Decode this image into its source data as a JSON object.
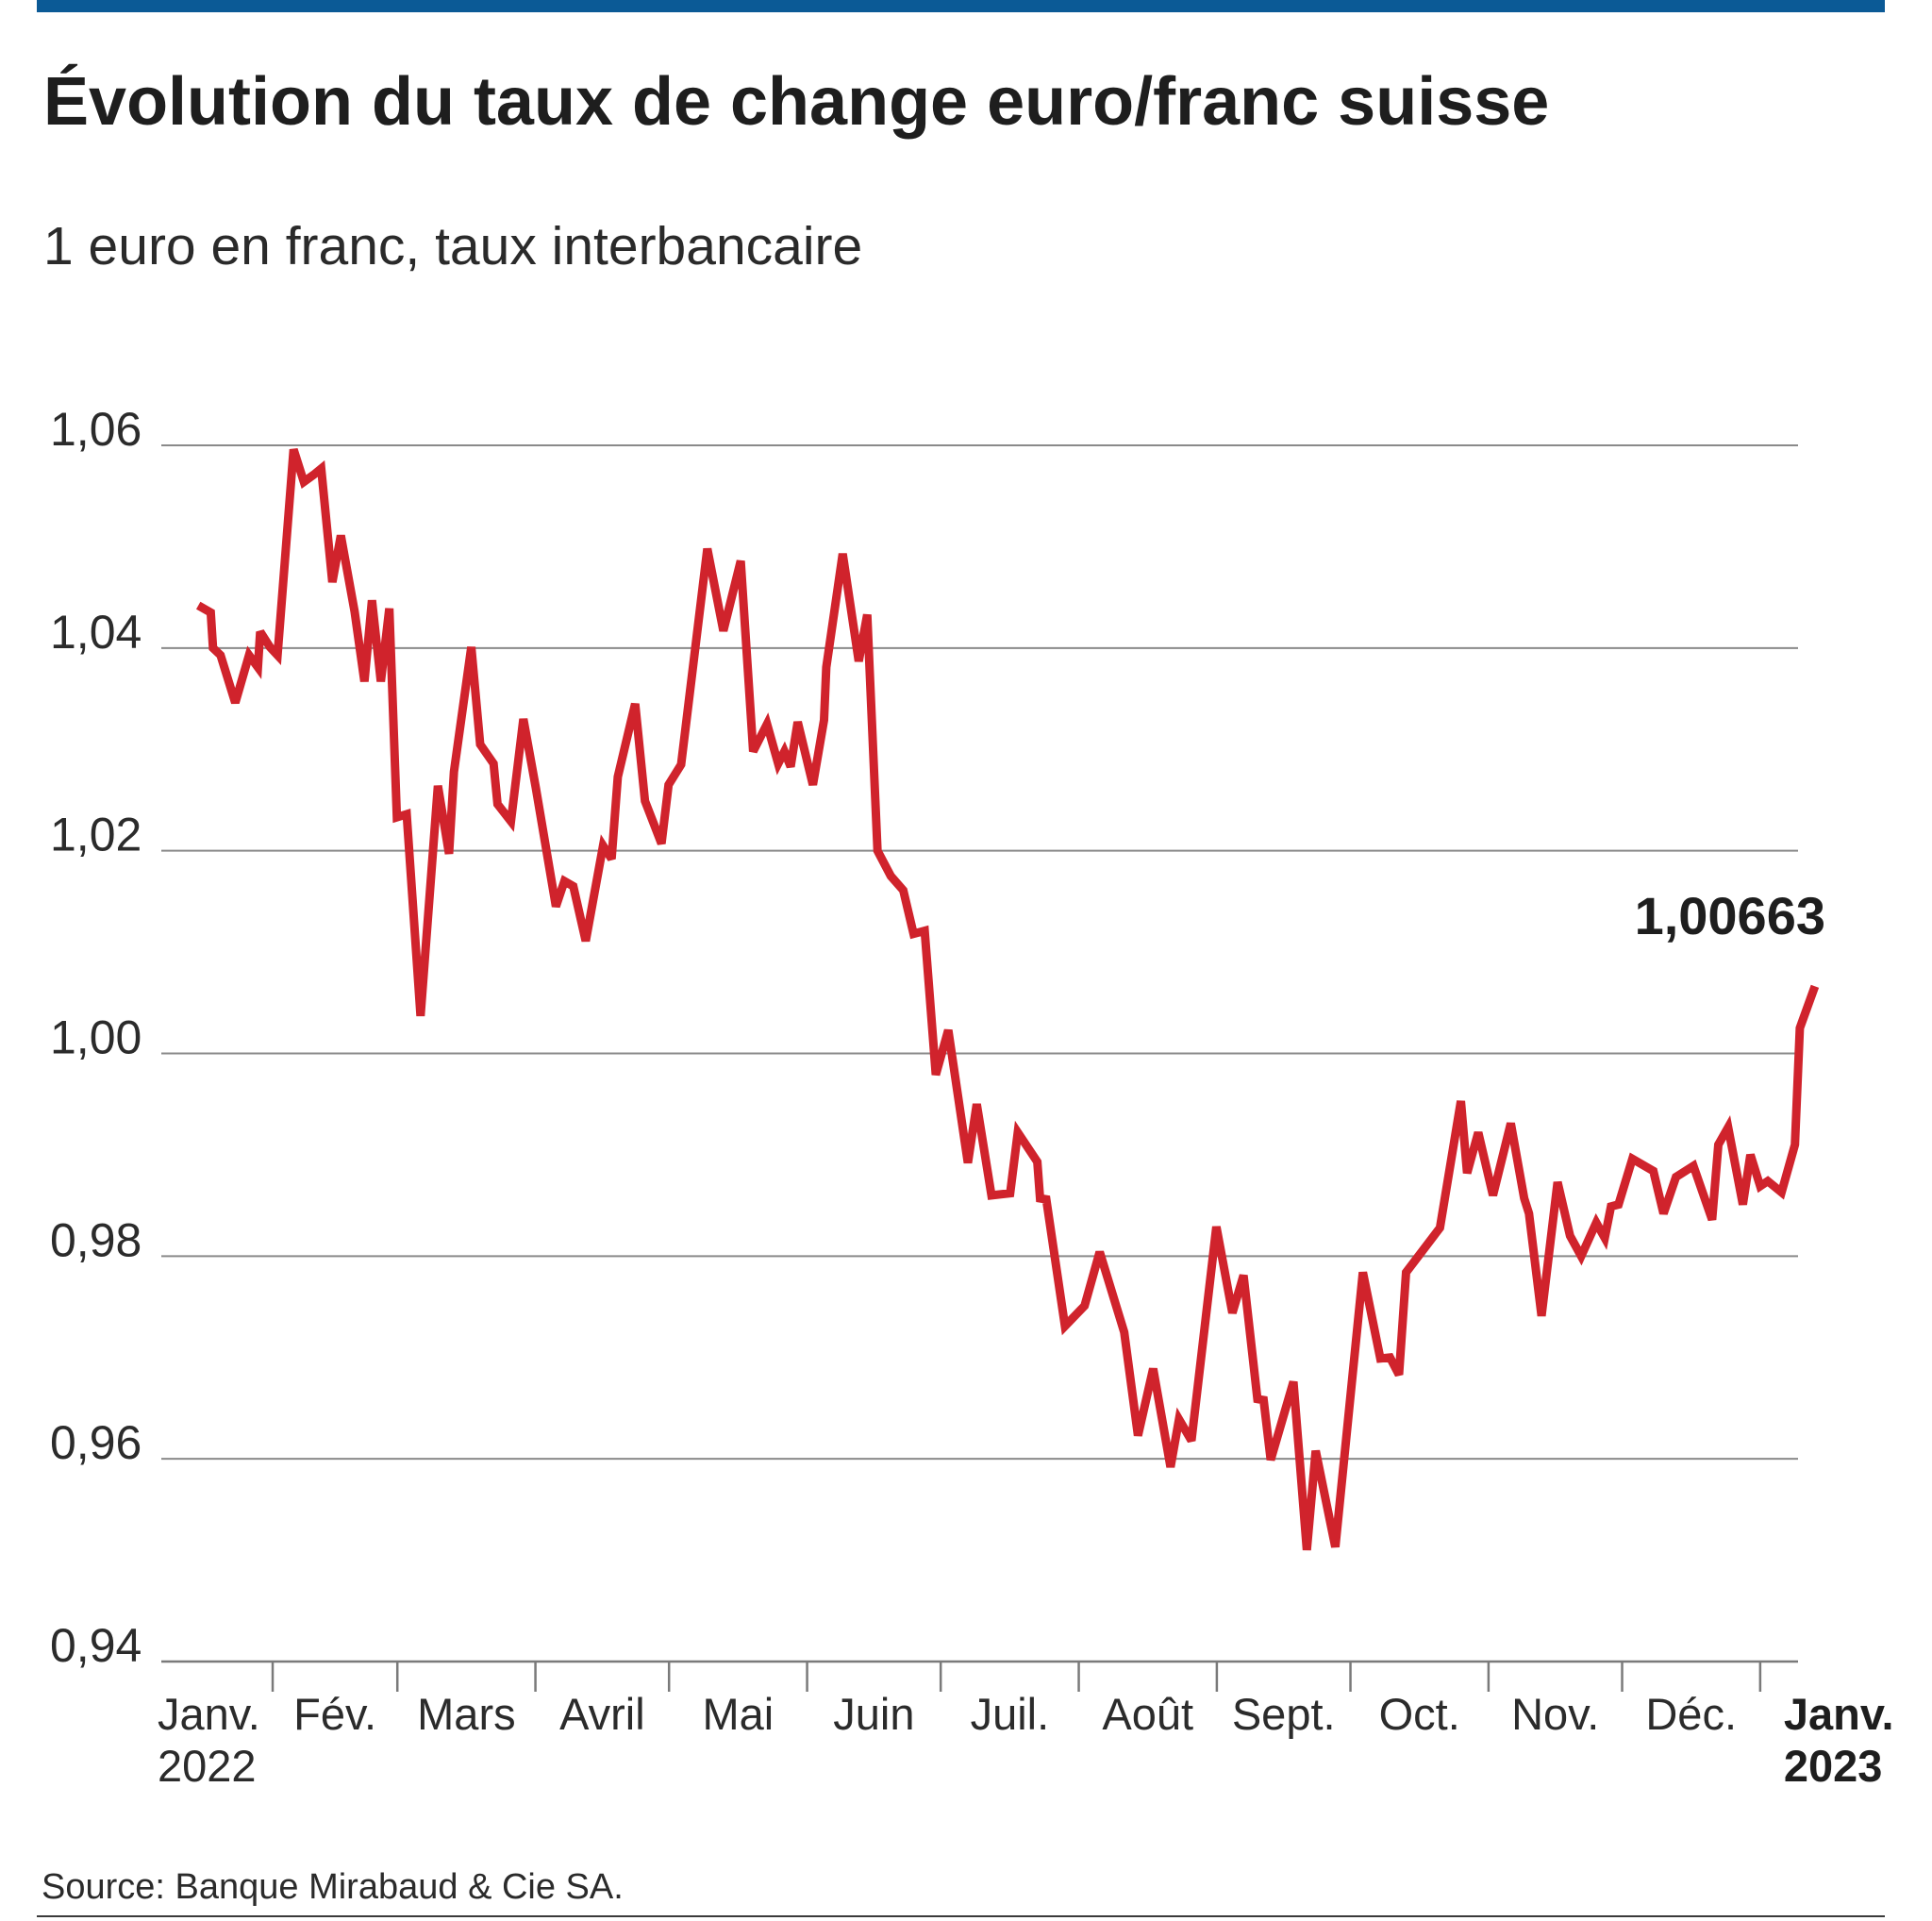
{
  "colors": {
    "top_bar": "#0b5a96",
    "line": "#d0232c",
    "grid": "#8a8a8a",
    "axis": "#7a7a7a",
    "rule": "#3a3a3a"
  },
  "source": "Source: Banque Mirabaud & Cie SA.",
  "chart_data": {
    "type": "line",
    "title": "Évolution du taux de change euro/franc suisse",
    "subtitle": "1 euro en franc, taux interbancaire",
    "grid": true,
    "xlim": [
      6,
      373.5
    ],
    "ylim": [
      0.94,
      1.06
    ],
    "yticks": [
      0.94,
      0.96,
      0.98,
      1.0,
      1.02,
      1.04,
      1.06
    ],
    "ytick_labels": [
      "0,94",
      "0,96",
      "0,98",
      "1,00",
      "1,02",
      "1,04",
      "1,06"
    ],
    "month_ticks": [
      31,
      59,
      90,
      120,
      151,
      181,
      212,
      243,
      273,
      304,
      334,
      365
    ],
    "month_labels": [
      "Janv.",
      "Fév.",
      "Mars",
      "Avril",
      "Mai",
      "Juin",
      "Juil.",
      "Août",
      "Sept.",
      "Oct.",
      "Nov.",
      "Déc.",
      "Janv."
    ],
    "year_labels": [
      "2022",
      "2023"
    ],
    "annotation": "1,00663",
    "series": [
      {
        "x": [
          14.3,
          17.1,
          17.6,
          19.3,
          22.6,
          25.7,
          27.7,
          28.2,
          30.4,
          32.1,
          35.7,
          38.0,
          40.2,
          41.9,
          44.4,
          46.3,
          49.4,
          51.6,
          53.3,
          55.3,
          57.2,
          58.9,
          61.1,
          64.2,
          68.1,
          70.6,
          71.7,
          75.6,
          77.6,
          80.6,
          81.5,
          84.5,
          87.3,
          90.1,
          94.6,
          96.5,
          98.5,
          101.3,
          105.2,
          107.1,
          108.5,
          112.4,
          114.6,
          118.3,
          119.9,
          122.7,
          128.6,
          132.2,
          136.1,
          138.9,
          142.0,
          144.5,
          145.9,
          147.3,
          148.9,
          152.3,
          154.8,
          155.3,
          159.0,
          162.6,
          164.5,
          166.8,
          169.8,
          172.6,
          174.9,
          177.4,
          179.9,
          182.7,
          187.1,
          189.1,
          192.4,
          196.6,
          198.3,
          202.7,
          203.3,
          204.7,
          208.9,
          213.3,
          216.7,
          222.2,
          225.3,
          228.7,
          232.6,
          234.5,
          237.3,
          242.9,
          246.5,
          249.0,
          252.1,
          253.5,
          255.1,
          260.2,
          263.2,
          265.2,
          269.6,
          275.8,
          279.7,
          281.9,
          283.9,
          285.5,
          293.1,
          297.8,
          299.2,
          301.7,
          305.0,
          309.0,
          312.0,
          313.1,
          315.9,
          319.5,
          322.3,
          324.8,
          328.2,
          330.1,
          331.5,
          333.2,
          336.3,
          341.0,
          343.3,
          346.1,
          350.0,
          354.2,
          355.6,
          357.8,
          361.1,
          362.8,
          365.0,
          366.7,
          369.8,
          372.8,
          373.9,
          377.3
        ],
        "y": [
          1.0442,
          1.0435,
          1.04,
          1.0393,
          1.0346,
          1.0393,
          1.0381,
          1.0416,
          1.0401,
          1.0393,
          1.0596,
          1.0564,
          1.0571,
          1.0577,
          1.0465,
          1.0511,
          1.0436,
          1.0367,
          1.0447,
          1.0367,
          1.0439,
          1.0233,
          1.0236,
          1.0037,
          1.0264,
          1.0197,
          1.0278,
          1.0401,
          1.0305,
          1.0286,
          1.0246,
          1.0229,
          1.033,
          1.0262,
          1.0145,
          1.017,
          1.0165,
          1.0111,
          1.0205,
          1.0192,
          1.0273,
          1.0345,
          1.0249,
          1.0207,
          1.0265,
          1.0285,
          1.0498,
          1.0417,
          1.0486,
          1.0298,
          1.0325,
          1.0286,
          1.0298,
          1.0283,
          1.0327,
          1.0265,
          1.0329,
          1.0381,
          1.0493,
          1.0387,
          1.0433,
          1.02,
          1.0175,
          1.0161,
          1.0118,
          1.0121,
          0.9979,
          1.0023,
          0.9892,
          0.995,
          0.986,
          0.9862,
          0.9922,
          0.9893,
          0.9857,
          0.9856,
          0.9731,
          0.9751,
          0.9804,
          0.9725,
          0.9623,
          0.9689,
          0.9592,
          0.9639,
          0.9618,
          0.9829,
          0.9744,
          0.9781,
          0.9659,
          0.9658,
          0.9599,
          0.9676,
          0.951,
          0.9608,
          0.9513,
          0.9784,
          0.9699,
          0.97,
          0.9683,
          0.9784,
          0.9828,
          0.9953,
          0.9882,
          0.9922,
          0.986,
          0.9931,
          0.9857,
          0.9842,
          0.9741,
          0.9873,
          0.982,
          0.98,
          0.9833,
          0.9818,
          0.9849,
          0.9851,
          0.9896,
          0.9884,
          0.9842,
          0.9878,
          0.9889,
          0.9836,
          0.991,
          0.9927,
          0.9851,
          0.99,
          0.9869,
          0.9874,
          0.9863,
          0.991,
          1.0025,
          1.00663
        ]
      }
    ]
  }
}
